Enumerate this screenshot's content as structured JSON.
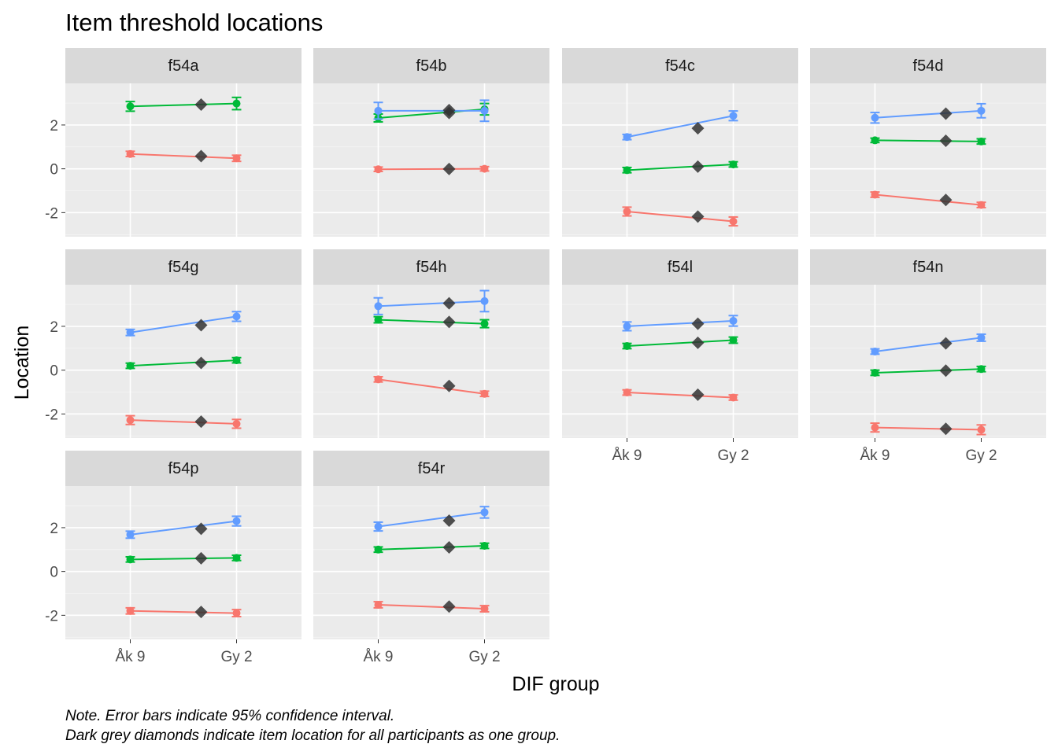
{
  "chart_data": {
    "type": "line",
    "title": "Item threshold locations",
    "xlabel": "DIF group",
    "ylabel": "Location",
    "x_categories": [
      "Åk 9",
      "",
      "Gy 2"
    ],
    "x_tick_labels": [
      "Åk 9",
      "Gy 2"
    ],
    "y_ticks": [
      -2,
      0,
      2
    ],
    "y_tick_labels": [
      "-2",
      "0",
      "2"
    ],
    "ylim": [
      -3.1,
      3.9
    ],
    "grid": true,
    "legend": "none",
    "series_colors": [
      "#F8766D",
      "#00BA38",
      "#619CFF"
    ],
    "overall_marker_color": "#333333",
    "panels": [
      {
        "name": "f54a",
        "series": [
          {
            "values": [
              0.68,
              null,
              0.48
            ],
            "ci": [
              0.12,
              null,
              0.14
            ]
          },
          {
            "values": [
              2.85,
              null,
              2.98
            ],
            "ci": [
              0.22,
              null,
              0.28
            ]
          }
        ],
        "overall": [
          0.58,
          2.93
        ]
      },
      {
        "name": "f54b",
        "series": [
          {
            "values": [
              -0.02,
              null,
              0.0
            ],
            "ci": [
              0.1,
              null,
              0.1
            ]
          },
          {
            "values": [
              2.32,
              null,
              2.72
            ],
            "ci": [
              0.18,
              null,
              0.26
            ]
          },
          {
            "values": [
              2.65,
              null,
              2.65
            ],
            "ci": [
              0.38,
              null,
              0.48
            ]
          }
        ],
        "overall": [
          -0.01,
          2.55,
          2.68
        ]
      },
      {
        "name": "f54c",
        "series": [
          {
            "values": [
              -1.95,
              null,
              -2.4
            ],
            "ci": [
              0.2,
              null,
              0.2
            ]
          },
          {
            "values": [
              -0.06,
              null,
              0.2
            ],
            "ci": [
              0.12,
              null,
              0.12
            ]
          },
          {
            "values": [
              1.45,
              null,
              2.42
            ],
            "ci": [
              0.12,
              null,
              0.22
            ]
          }
        ],
        "overall": [
          -2.18,
          0.1,
          1.85
        ]
      },
      {
        "name": "f54d",
        "series": [
          {
            "values": [
              -1.18,
              null,
              -1.65
            ],
            "ci": [
              0.12,
              null,
              0.12
            ]
          },
          {
            "values": [
              1.3,
              null,
              1.25
            ],
            "ci": [
              0.1,
              null,
              0.12
            ]
          },
          {
            "values": [
              2.33,
              null,
              2.65
            ],
            "ci": [
              0.24,
              null,
              0.32
            ]
          }
        ],
        "overall": [
          -1.42,
          1.28,
          2.52
        ]
      },
      {
        "name": "f54g",
        "series": [
          {
            "values": [
              -2.28,
              null,
              -2.45
            ],
            "ci": [
              0.2,
              null,
              0.2
            ]
          },
          {
            "values": [
              0.2,
              null,
              0.45
            ],
            "ci": [
              0.12,
              null,
              0.12
            ]
          },
          {
            "values": [
              1.72,
              null,
              2.45
            ],
            "ci": [
              0.14,
              null,
              0.22
            ]
          }
        ],
        "overall": [
          -2.35,
          0.33,
          2.05
        ]
      },
      {
        "name": "f54h",
        "series": [
          {
            "values": [
              -0.42,
              null,
              -1.08
            ],
            "ci": [
              0.12,
              null,
              0.12
            ]
          },
          {
            "values": [
              2.3,
              null,
              2.12
            ],
            "ci": [
              0.14,
              null,
              0.18
            ]
          },
          {
            "values": [
              2.92,
              null,
              3.15
            ],
            "ci": [
              0.38,
              null,
              0.48
            ]
          }
        ],
        "overall": [
          -0.72,
          2.2,
          3.05
        ]
      },
      {
        "name": "f54l",
        "series": [
          {
            "values": [
              -1.02,
              null,
              -1.25
            ],
            "ci": [
              0.12,
              null,
              0.12
            ]
          },
          {
            "values": [
              1.1,
              null,
              1.37
            ],
            "ci": [
              0.12,
              null,
              0.14
            ]
          },
          {
            "values": [
              2.0,
              null,
              2.25
            ],
            "ci": [
              0.2,
              null,
              0.24
            ]
          }
        ],
        "overall": [
          -1.12,
          1.25,
          2.12
        ]
      },
      {
        "name": "f54n",
        "series": [
          {
            "values": [
              -2.62,
              null,
              -2.72
            ],
            "ci": [
              0.2,
              null,
              0.22
            ]
          },
          {
            "values": [
              -0.12,
              null,
              0.05
            ],
            "ci": [
              0.12,
              null,
              0.12
            ]
          },
          {
            "values": [
              0.85,
              null,
              1.48
            ],
            "ci": [
              0.12,
              null,
              0.16
            ]
          }
        ],
        "overall": [
          -2.68,
          -0.02,
          1.22
        ]
      },
      {
        "name": "f54p",
        "series": [
          {
            "values": [
              -1.8,
              null,
              -1.9
            ],
            "ci": [
              0.14,
              null,
              0.16
            ]
          },
          {
            "values": [
              0.55,
              null,
              0.62
            ],
            "ci": [
              0.12,
              null,
              0.12
            ]
          },
          {
            "values": [
              1.68,
              null,
              2.3
            ],
            "ci": [
              0.16,
              null,
              0.22
            ]
          }
        ],
        "overall": [
          -1.85,
          0.6,
          1.95
        ]
      },
      {
        "name": "f54r",
        "series": [
          {
            "values": [
              -1.52,
              null,
              -1.7
            ],
            "ci": [
              0.14,
              null,
              0.14
            ]
          },
          {
            "values": [
              1.0,
              null,
              1.17
            ],
            "ci": [
              0.12,
              null,
              0.12
            ]
          },
          {
            "values": [
              2.05,
              null,
              2.7
            ],
            "ci": [
              0.2,
              null,
              0.26
            ]
          }
        ],
        "overall": [
          -1.6,
          1.1,
          2.32
        ]
      }
    ],
    "notes": [
      "Note. Error bars indicate 95% confidence interval.",
      "Dark grey diamonds indicate item location for all participants as one group."
    ]
  }
}
